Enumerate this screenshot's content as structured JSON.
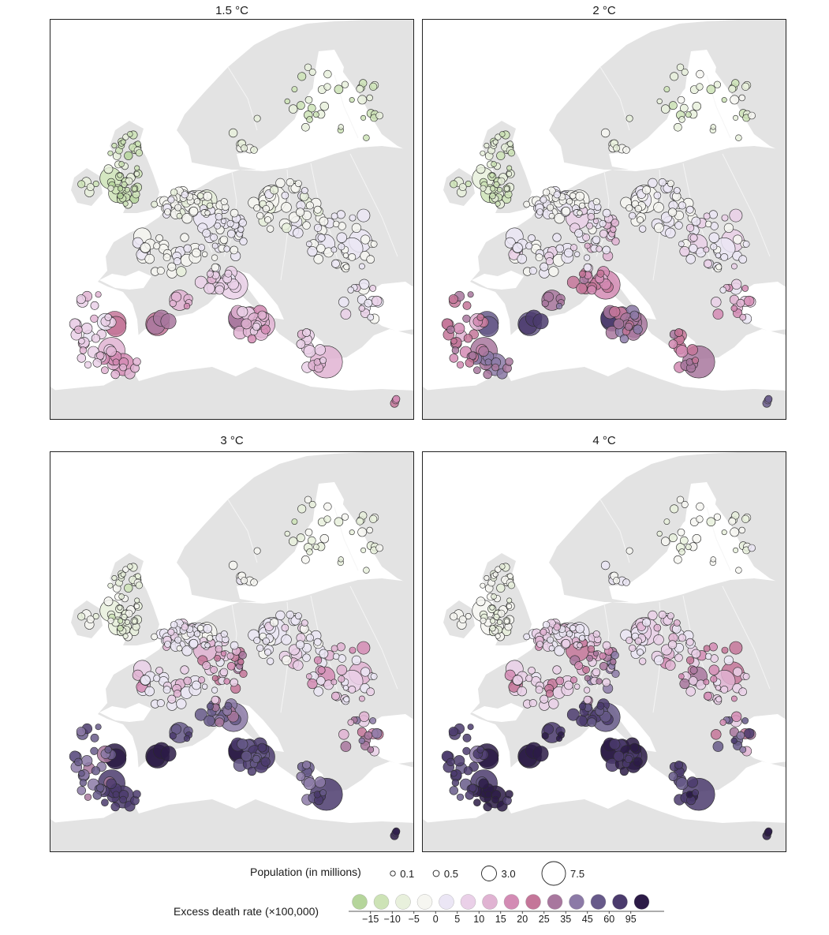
{
  "panels": [
    {
      "title": "1.5 °C",
      "warming": 1.5
    },
    {
      "title": "2 °C",
      "warming": 2
    },
    {
      "title": "3 °C",
      "warming": 3
    },
    {
      "title": "4 °C",
      "warming": 4
    }
  ],
  "legend": {
    "population_label": "Population (in millions)",
    "population_sizes": [
      {
        "label": "0.1",
        "value": 0.1
      },
      {
        "label": "0.5",
        "value": 0.5
      },
      {
        "label": "3.0",
        "value": 3.0
      },
      {
        "label": "7.5",
        "value": 7.5
      }
    ],
    "rate_label": "Excess death rate (×100,000)",
    "rate_ticks": [
      "−15",
      "−10",
      "−5",
      "0",
      "5",
      "10",
      "15",
      "20",
      "25",
      "35",
      "45",
      "60",
      "95"
    ],
    "rate_colors": [
      "#b5d59b",
      "#cde3b6",
      "#e8f0dc",
      "#f6f6f1",
      "#ebe6f5",
      "#ead0e8",
      "#e0b3d2",
      "#d38bb4",
      "#c47699",
      "#a8779e",
      "#8c7aa7",
      "#675a8a",
      "#4b3b6d",
      "#2c1b47"
    ]
  },
  "colors": {
    "land": "#e3e3e3",
    "sea": "#ffffff",
    "border": "#f5f5f5",
    "marker_stroke": "#2a2a2a"
  }
}
